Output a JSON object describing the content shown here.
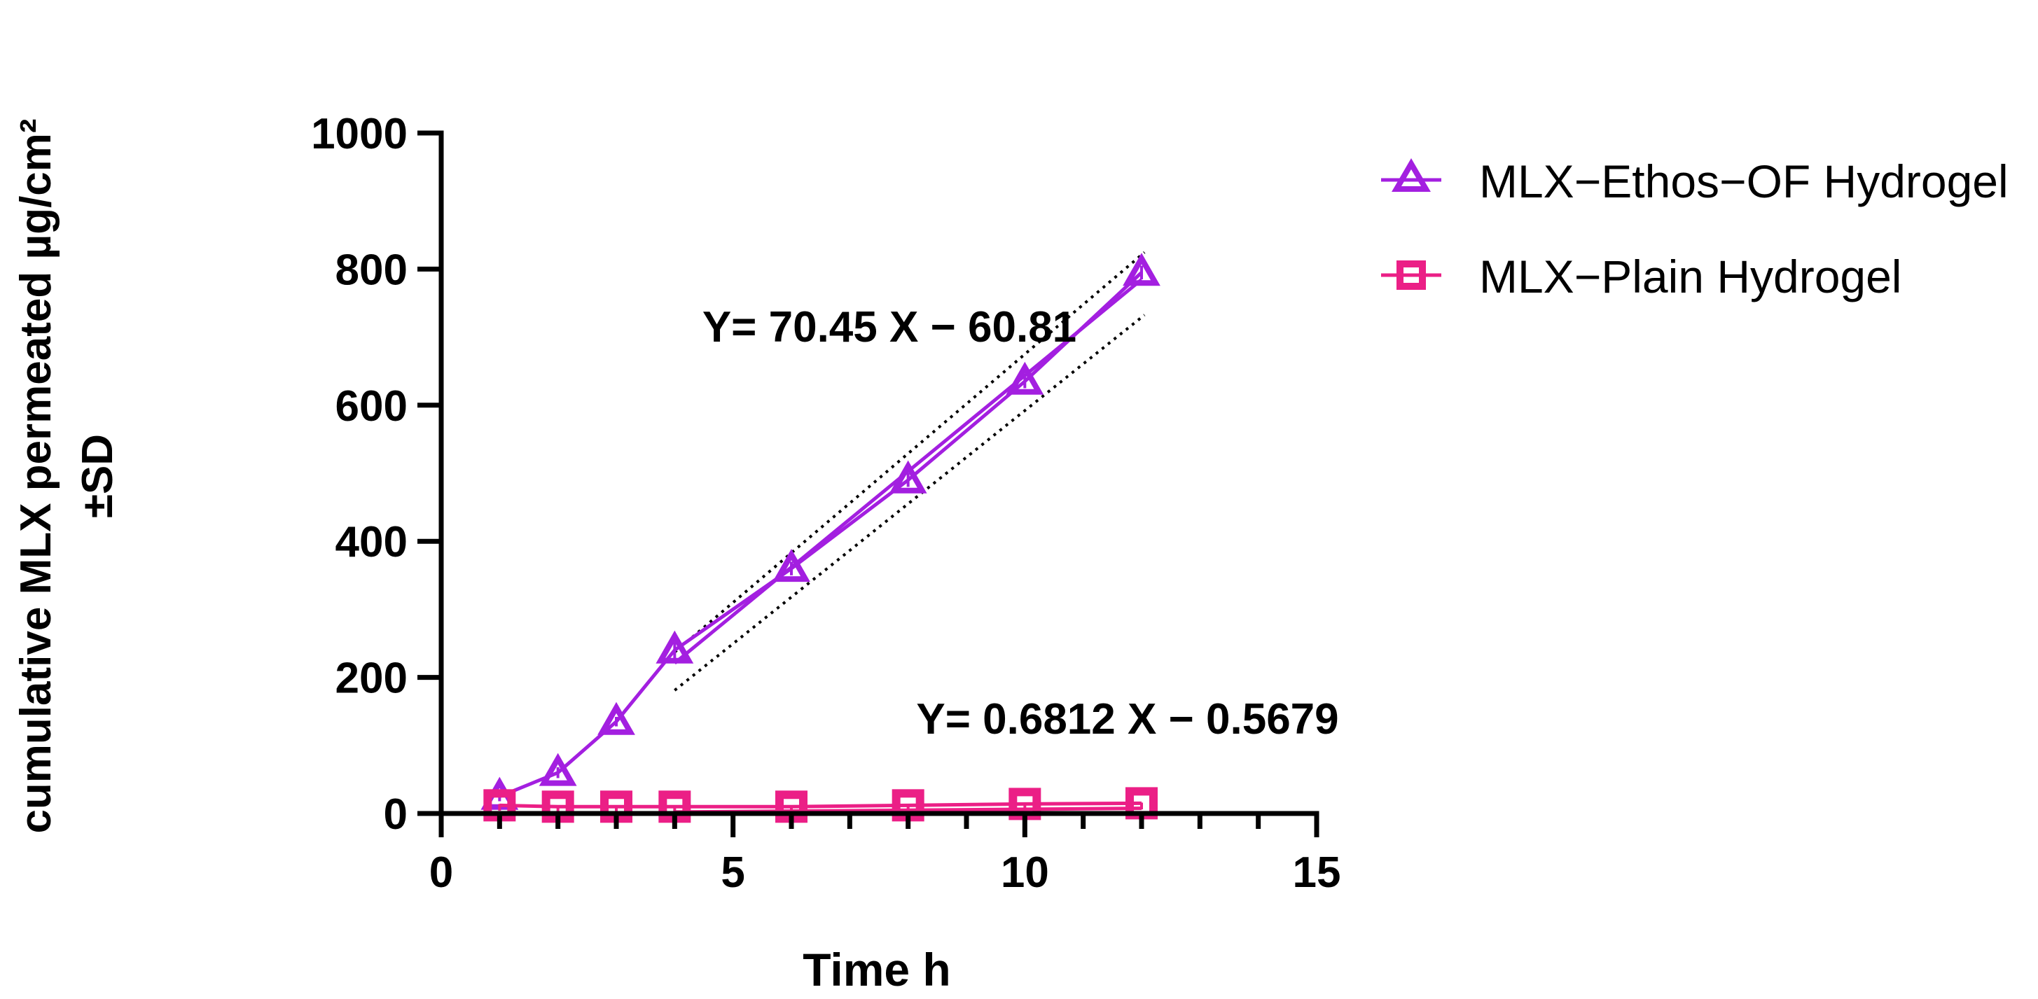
{
  "chart_data": {
    "type": "line",
    "title": "",
    "xlabel": "Time h",
    "ylabel_line1": "cumulative MLX permeated µg/cm²",
    "ylabel_line2": "±SD",
    "xlim": [
      0,
      15
    ],
    "ylim": [
      0,
      1000
    ],
    "x_ticks": [
      0,
      5,
      10,
      15
    ],
    "y_ticks": [
      0,
      200,
      400,
      600,
      800,
      1000
    ],
    "x_minor_step": 1,
    "grid": false,
    "legend_position": "right",
    "series": [
      {
        "name": "MLX−Ethos−OF Hydrogel",
        "marker": "triangle-open",
        "color": "#a31fe0",
        "x": [
          1,
          2,
          3,
          4,
          6,
          8,
          10,
          12
        ],
        "y": [
          25,
          60,
          135,
          240,
          360,
          490,
          635,
          795
        ],
        "y_low": [
          18,
          52,
          128,
          228,
          350,
          480,
          625,
          785
        ],
        "y_high": [
          32,
          68,
          142,
          252,
          370,
          500,
          645,
          805
        ]
      },
      {
        "name": "MLX−Plain Hydrogel",
        "marker": "square-open",
        "color": "#eb1f86",
        "x": [
          1,
          2,
          3,
          4,
          6,
          8,
          10,
          12
        ],
        "y": [
          12,
          10,
          10,
          10,
          10,
          12,
          14,
          15
        ],
        "y_low": [
          4,
          3,
          3,
          3,
          3,
          4,
          5,
          6
        ],
        "y_high": [
          14,
          12,
          12,
          12,
          12,
          13,
          15,
          16
        ]
      }
    ],
    "regressions": [
      {
        "series": "MLX−Ethos−OF Hydrogel",
        "equation": "Y= 70.45 X − 60.81",
        "slope": 70.45,
        "intercept": -60.81,
        "x_range": [
          4,
          12
        ],
        "color": "#a31fe0",
        "band_halfwidth": 40
      },
      {
        "series": "MLX−Plain Hydrogel",
        "equation": "Y= 0.6812 X − 0.5679",
        "slope": 0.6812,
        "intercept": -0.5679,
        "x_range": [
          4,
          12
        ],
        "color": "#eb1f86",
        "band_halfwidth": 0
      }
    ]
  }
}
